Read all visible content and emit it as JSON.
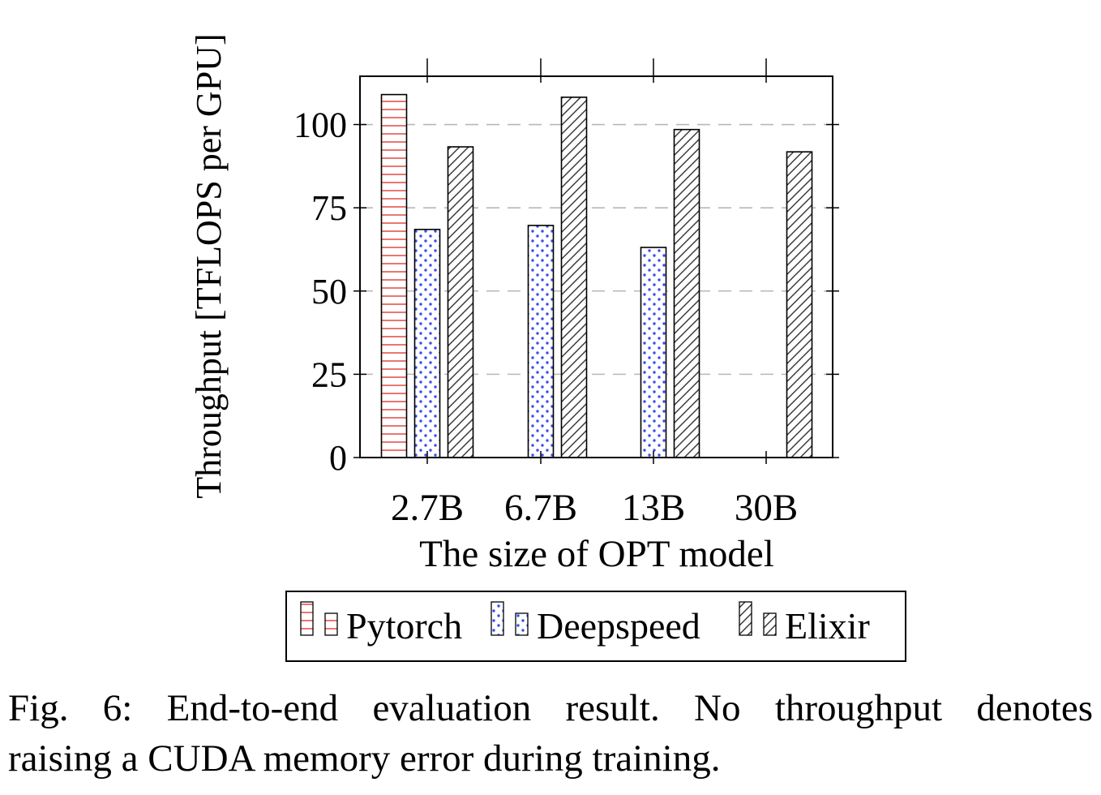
{
  "chart_data": {
    "type": "bar",
    "categories": [
      "2.7B",
      "6.7B",
      "13B",
      "30B"
    ],
    "series": [
      {
        "name": "Pytorch",
        "values": [
          109,
          null,
          null,
          null
        ],
        "color": "#e8534f",
        "pattern": "horizontal-lines"
      },
      {
        "name": "Deepspeed",
        "values": [
          68.5,
          69.7,
          63.1,
          null
        ],
        "color": "#3b4ef2",
        "pattern": "dots"
      },
      {
        "name": "Elixir",
        "values": [
          93.3,
          108.2,
          98.5,
          91.8
        ],
        "color": "#333333",
        "pattern": "north-east-lines"
      }
    ],
    "xlabel": "The size of OPT model",
    "ylabel": "Throughput [TFLOPS per GPU]",
    "ylim": [
      0,
      114.5
    ],
    "yticks": [
      "0",
      "25",
      "50",
      "75",
      "100"
    ],
    "grid": "major-y-dashed",
    "legend_position": "below"
  },
  "caption": {
    "line1": "Fig. 6: End-to-end evaluation result. No throughput denotes",
    "line2": "raising a CUDA memory error during training."
  }
}
